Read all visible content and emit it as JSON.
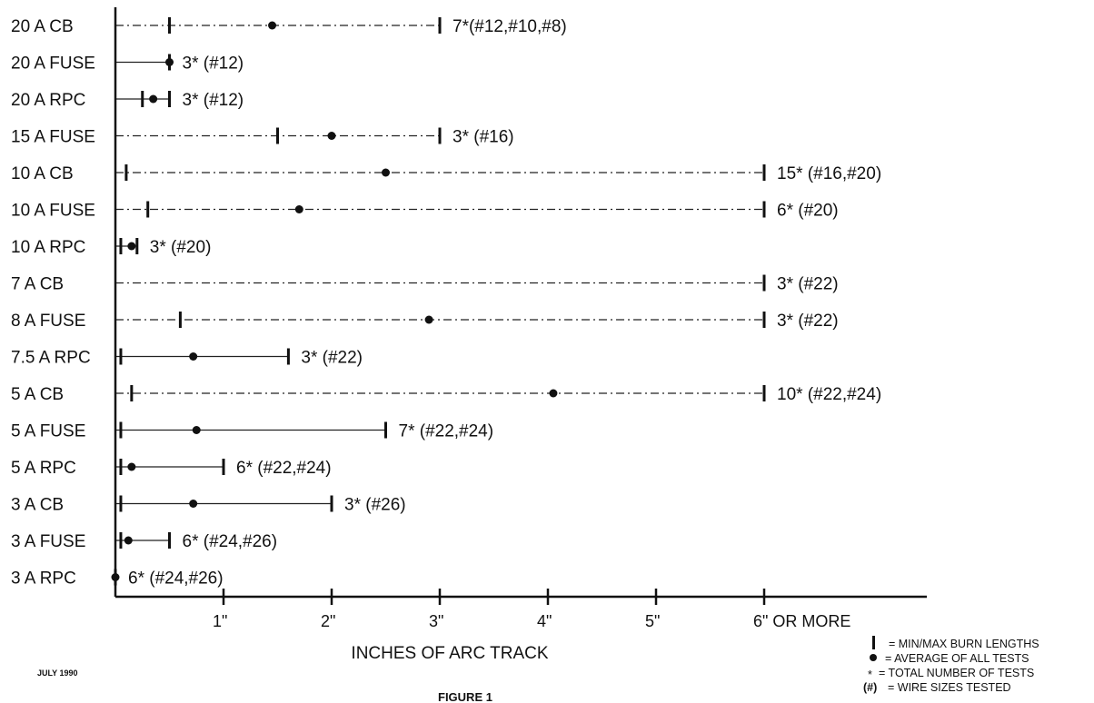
{
  "chart_data": {
    "type": "range",
    "categories": [
      "20 A CB",
      "20 A FUSE",
      "20 A RPC",
      "15 A FUSE",
      "10 A CB",
      "10 A FUSE",
      "10 A RPC",
      "7 A CB",
      "8 A FUSE",
      "7.5 A RPC",
      "5 A CB",
      "5 A FUSE",
      "5 A RPC",
      "3 A CB",
      "3 A FUSE",
      "3 A RPC"
    ],
    "min": [
      0.5,
      0.5,
      0.25,
      1.5,
      0.1,
      0.3,
      0.05,
      6.0,
      0.6,
      0.05,
      0.15,
      0.05,
      0.05,
      0.05,
      0.05,
      0.0
    ],
    "avg": [
      1.45,
      0.5,
      0.35,
      2.0,
      2.5,
      1.7,
      0.15,
      null,
      2.9,
      0.72,
      4.05,
      0.75,
      0.15,
      0.72,
      0.12,
      0.0
    ],
    "max": [
      3.0,
      0.5,
      0.5,
      3.0,
      6.0,
      6.0,
      0.2,
      6.0,
      6.0,
      1.6,
      6.0,
      2.5,
      1.0,
      2.0,
      0.5,
      0.0
    ],
    "annotations": [
      "7*(#12,#10,#8)",
      "3* (#12)",
      "3* (#12)",
      "3* (#16)",
      "15* (#16,#20)",
      "6* (#20)",
      "3* (#20)",
      "3* (#22)",
      "3* (#22)",
      "3* (#22)",
      "10* (#22,#24)",
      "7* (#22,#24)",
      "6* (#22,#24)",
      "3* (#26)",
      "6* (#24,#26)",
      "6* (#24,#26)"
    ],
    "xlim": [
      0,
      7.5
    ],
    "xticks": [
      1,
      2,
      3,
      4,
      5,
      6
    ],
    "xtick_labels": [
      "1\"",
      "2\"",
      "3\"",
      "4\"",
      "5\"",
      "6\" OR MORE"
    ],
    "xlabel": "INCHES OF ARC TRACK",
    "legend": [
      {
        "symbol": "bar",
        "label": "= MIN/MAX BURN LENGTHS"
      },
      {
        "symbol": "dot",
        "label": "= AVERAGE OF ALL TESTS"
      },
      {
        "symbol": "star",
        "label": "= TOTAL NUMBER OF TESTS"
      },
      {
        "symbol": "paren",
        "label": "= WIRE SIZES TESTED"
      }
    ],
    "legend_placement": "bottom-right"
  },
  "legend_symbols": {
    "star": "*",
    "paren": "(#)"
  },
  "footer": {
    "date": "JULY 1990",
    "figure": "FIGURE 1"
  }
}
